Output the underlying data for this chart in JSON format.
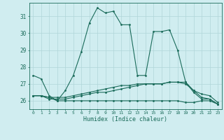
{
  "xlabel": "Humidex (Indice chaleur)",
  "x": [
    0,
    1,
    2,
    3,
    4,
    5,
    6,
    7,
    8,
    9,
    10,
    11,
    12,
    13,
    14,
    15,
    16,
    17,
    18,
    19,
    20,
    21,
    22,
    23
  ],
  "main_line": [
    27.5,
    27.3,
    26.3,
    26.0,
    26.6,
    27.5,
    28.9,
    30.6,
    31.5,
    31.2,
    31.3,
    30.5,
    30.5,
    27.5,
    27.5,
    30.1,
    30.1,
    30.2,
    29.0,
    27.1,
    26.5,
    26.1,
    26.1,
    25.8
  ],
  "flat1": [
    26.3,
    26.3,
    26.2,
    26.0,
    26.0,
    26.0,
    26.0,
    26.0,
    26.0,
    26.0,
    26.0,
    26.0,
    26.0,
    26.0,
    26.0,
    26.0,
    26.0,
    26.0,
    26.0,
    25.9,
    25.9,
    26.0,
    26.0,
    25.8
  ],
  "flat2": [
    26.3,
    26.3,
    26.2,
    26.2,
    26.2,
    26.3,
    26.4,
    26.5,
    26.6,
    26.7,
    26.8,
    26.9,
    26.9,
    27.0,
    27.0,
    27.0,
    27.0,
    27.1,
    27.1,
    27.1,
    26.6,
    26.2,
    26.1,
    25.8
  ],
  "flat3": [
    26.3,
    26.3,
    26.1,
    26.1,
    26.1,
    26.2,
    26.3,
    26.4,
    26.5,
    26.5,
    26.6,
    26.7,
    26.8,
    26.9,
    27.0,
    27.0,
    27.0,
    27.1,
    27.1,
    27.0,
    26.6,
    26.4,
    26.3,
    25.9
  ],
  "color": "#1a6b5a",
  "bg_color": "#d0edf0",
  "grid_color": "#afd5d8",
  "ylim": [
    25.5,
    31.8
  ],
  "yticks": [
    26,
    27,
    28,
    29,
    30,
    31
  ],
  "figsize": [
    3.2,
    2.0
  ],
  "dpi": 100
}
